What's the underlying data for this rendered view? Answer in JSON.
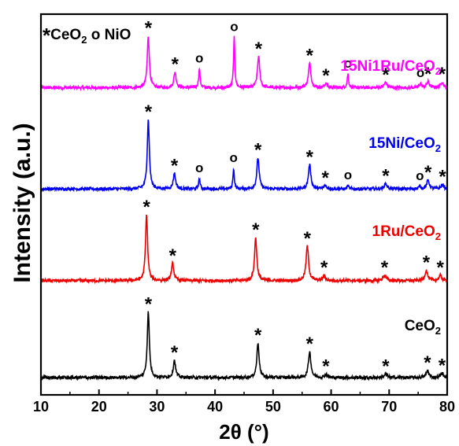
{
  "chart_data": {
    "type": "line",
    "xlabel": "2θ (°)",
    "ylabel": "Intensity (a.u.)",
    "xlim": [
      10,
      80
    ],
    "xticks": [
      "10",
      "20",
      "30",
      "40",
      "50",
      "60",
      "70",
      "80"
    ],
    "legend": {
      "ceo2_symbol": "*",
      "ceo2_label": "CeO",
      "ceo2_sub": "2",
      "nio_symbol": "o",
      "nio_label": "NiO"
    },
    "marker_symbols": {
      "ceo2": "*",
      "nio": "o"
    },
    "series": [
      {
        "name": "15Ni1Ru/CeO2",
        "label_main": "15Ni1Ru/CeO",
        "label_sub": "2",
        "color": "#ff00ff",
        "baseline": 3.55,
        "peaks": [
          {
            "x": 28.5,
            "h": 0.6,
            "w": 0.32,
            "mark": "ceo2"
          },
          {
            "x": 33.1,
            "h": 0.18,
            "w": 0.35,
            "mark": "ceo2"
          },
          {
            "x": 37.3,
            "h": 0.22,
            "w": 0.22,
            "mark": "nio"
          },
          {
            "x": 43.3,
            "h": 0.58,
            "w": 0.2,
            "mark": "nio"
          },
          {
            "x": 47.5,
            "h": 0.36,
            "w": 0.35,
            "mark": "ceo2"
          },
          {
            "x": 56.3,
            "h": 0.28,
            "w": 0.38,
            "mark": "ceo2"
          },
          {
            "x": 59.1,
            "h": 0.05,
            "w": 0.35,
            "mark": "ceo2"
          },
          {
            "x": 62.9,
            "h": 0.16,
            "w": 0.22,
            "mark": "nio"
          },
          {
            "x": 69.4,
            "h": 0.06,
            "w": 0.45,
            "mark": "ceo2"
          },
          {
            "x": 75.4,
            "h": 0.05,
            "w": 0.3,
            "mark": "nio"
          },
          {
            "x": 76.7,
            "h": 0.07,
            "w": 0.4,
            "mark": "ceo2"
          },
          {
            "x": 79.1,
            "h": 0.07,
            "w": 0.4,
            "mark": "ceo2"
          }
        ]
      },
      {
        "name": "15Ni/CeO2",
        "label_main": "15Ni/CeO",
        "label_sub": "2",
        "color": "#0000ee",
        "baseline": 2.38,
        "peaks": [
          {
            "x": 28.5,
            "h": 0.8,
            "w": 0.32,
            "mark": "ceo2"
          },
          {
            "x": 33.0,
            "h": 0.18,
            "w": 0.35,
            "mark": "ceo2"
          },
          {
            "x": 37.3,
            "h": 0.12,
            "w": 0.22,
            "mark": "nio"
          },
          {
            "x": 43.2,
            "h": 0.24,
            "w": 0.2,
            "mark": "nio"
          },
          {
            "x": 47.4,
            "h": 0.36,
            "w": 0.35,
            "mark": "ceo2"
          },
          {
            "x": 56.3,
            "h": 0.28,
            "w": 0.38,
            "mark": "ceo2"
          },
          {
            "x": 59.0,
            "h": 0.04,
            "w": 0.35,
            "mark": "ceo2"
          },
          {
            "x": 62.9,
            "h": 0.04,
            "w": 0.22,
            "mark": "nio"
          },
          {
            "x": 69.4,
            "h": 0.06,
            "w": 0.45,
            "mark": "ceo2"
          },
          {
            "x": 75.3,
            "h": 0.03,
            "w": 0.3,
            "mark": "nio"
          },
          {
            "x": 76.7,
            "h": 0.1,
            "w": 0.4,
            "mark": "ceo2"
          },
          {
            "x": 79.2,
            "h": 0.05,
            "w": 0.4,
            "mark": "ceo2"
          }
        ]
      },
      {
        "name": "1Ru/CeO2",
        "label_main": "1Ru/CeO",
        "label_sub": "2",
        "color": "#ee0000",
        "baseline": 1.32,
        "peaks": [
          {
            "x": 28.2,
            "h": 0.76,
            "w": 0.32,
            "mark": "ceo2"
          },
          {
            "x": 32.7,
            "h": 0.2,
            "w": 0.35,
            "mark": "ceo2"
          },
          {
            "x": 47.0,
            "h": 0.5,
            "w": 0.35,
            "mark": "ceo2"
          },
          {
            "x": 55.9,
            "h": 0.4,
            "w": 0.38,
            "mark": "ceo2"
          },
          {
            "x": 58.8,
            "h": 0.06,
            "w": 0.35,
            "mark": "ceo2"
          },
          {
            "x": 69.2,
            "h": 0.06,
            "w": 0.45,
            "mark": "ceo2"
          },
          {
            "x": 76.4,
            "h": 0.12,
            "w": 0.4,
            "mark": "ceo2"
          },
          {
            "x": 78.8,
            "h": 0.06,
            "w": 0.4,
            "mark": "ceo2"
          }
        ]
      },
      {
        "name": "CeO2",
        "label_main": "CeO",
        "label_sub": "2",
        "color": "#000000",
        "baseline": 0.2,
        "peaks": [
          {
            "x": 28.5,
            "h": 0.76,
            "w": 0.32,
            "mark": "ceo2"
          },
          {
            "x": 33.0,
            "h": 0.2,
            "w": 0.35,
            "mark": "ceo2"
          },
          {
            "x": 47.4,
            "h": 0.4,
            "w": 0.35,
            "mark": "ceo2"
          },
          {
            "x": 56.3,
            "h": 0.3,
            "w": 0.38,
            "mark": "ceo2"
          },
          {
            "x": 59.1,
            "h": 0.04,
            "w": 0.35,
            "mark": "ceo2"
          },
          {
            "x": 69.4,
            "h": 0.04,
            "w": 0.45,
            "mark": "ceo2"
          },
          {
            "x": 76.6,
            "h": 0.08,
            "w": 0.4,
            "mark": "ceo2"
          },
          {
            "x": 79.1,
            "h": 0.05,
            "w": 0.4,
            "mark": "ceo2"
          }
        ]
      }
    ]
  }
}
